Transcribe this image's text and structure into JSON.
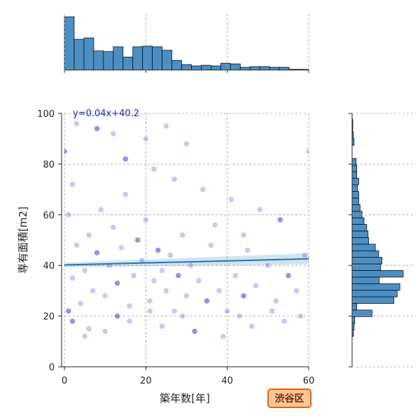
{
  "chart_data": {
    "type": "scatter",
    "xlabel": "築年数[年]",
    "ylabel": "専有面積[m2]",
    "xlim": [
      0,
      60
    ],
    "ylim": [
      0,
      100
    ],
    "xticks": [
      0,
      20,
      40,
      60
    ],
    "yticks": [
      0,
      20,
      40,
      60,
      80,
      100
    ],
    "grid": true,
    "regression": {
      "label": "y=0.04x+40.2",
      "slope": 0.04,
      "intercept": 40.2
    },
    "region_label": "渋谷区",
    "scatter_points": [
      [
        1,
        22
      ],
      [
        2,
        35
      ],
      [
        3,
        48
      ],
      [
        1,
        60
      ],
      [
        2,
        72
      ],
      [
        0,
        85
      ],
      [
        4,
        25
      ],
      [
        5,
        38
      ],
      [
        6,
        52
      ],
      [
        7,
        30
      ],
      [
        8,
        45
      ],
      [
        9,
        62
      ],
      [
        10,
        28
      ],
      [
        11,
        40
      ],
      [
        12,
        55
      ],
      [
        13,
        33
      ],
      [
        14,
        47
      ],
      [
        15,
        68
      ],
      [
        16,
        24
      ],
      [
        17,
        36
      ],
      [
        18,
        50
      ],
      [
        19,
        42
      ],
      [
        20,
        58
      ],
      [
        21,
        26
      ],
      [
        22,
        34
      ],
      [
        23,
        46
      ],
      [
        24,
        38
      ],
      [
        25,
        30
      ],
      [
        26,
        44
      ],
      [
        27,
        22
      ],
      [
        28,
        36
      ],
      [
        29,
        52
      ],
      [
        30,
        28
      ],
      [
        31,
        40
      ],
      [
        33,
        34
      ],
      [
        35,
        26
      ],
      [
        36,
        48
      ],
      [
        38,
        30
      ],
      [
        40,
        22
      ],
      [
        42,
        36
      ],
      [
        44,
        28
      ],
      [
        45,
        46
      ],
      [
        47,
        32
      ],
      [
        50,
        40
      ],
      [
        52,
        26
      ],
      [
        55,
        36
      ],
      [
        57,
        30
      ],
      [
        59,
        44
      ],
      [
        60,
        85
      ],
      [
        3,
        96
      ],
      [
        8,
        94
      ],
      [
        12,
        92
      ],
      [
        20,
        90
      ],
      [
        25,
        95
      ],
      [
        30,
        88
      ],
      [
        15,
        82
      ],
      [
        22,
        78
      ],
      [
        34,
        70
      ],
      [
        41,
        66
      ],
      [
        48,
        62
      ],
      [
        53,
        58
      ],
      [
        27,
        74
      ],
      [
        37,
        56
      ],
      [
        44,
        52
      ],
      [
        58,
        20
      ],
      [
        2,
        18
      ],
      [
        6,
        15
      ],
      [
        10,
        14
      ],
      [
        16,
        18
      ],
      [
        24,
        16
      ],
      [
        32,
        14
      ],
      [
        39,
        12
      ],
      [
        46,
        16
      ],
      [
        54,
        18
      ],
      [
        5,
        12
      ],
      [
        13,
        20
      ],
      [
        21,
        22
      ],
      [
        29,
        20
      ],
      [
        43,
        20
      ],
      [
        51,
        22
      ]
    ],
    "top_histogram": {
      "bin_start": 0,
      "bin_width": 2.4,
      "counts": [
        78,
        45,
        47,
        28,
        27,
        34,
        19,
        34,
        35,
        34,
        29,
        14,
        8,
        6,
        7,
        6,
        10,
        9,
        4,
        5,
        5,
        4,
        4,
        1,
        1
      ]
    },
    "right_histogram": {
      "bin_start": 12,
      "bin_width": 2.6,
      "counts": [
        2,
        3,
        4,
        30,
        7,
        63,
        68,
        72,
        41,
        77,
        43,
        45,
        40,
        35,
        25,
        24,
        22,
        18,
        15,
        12,
        10,
        10,
        8,
        10,
        7,
        7,
        6,
        0,
        0,
        3,
        2,
        1,
        1
      ]
    }
  },
  "colors": {
    "scatter_point": "#3a3ac8",
    "regression_line": "#1f77b4",
    "histogram_fill": "#4c8fc4",
    "badge_fill": "#f7c79a",
    "badge_border": "#e8620a"
  }
}
